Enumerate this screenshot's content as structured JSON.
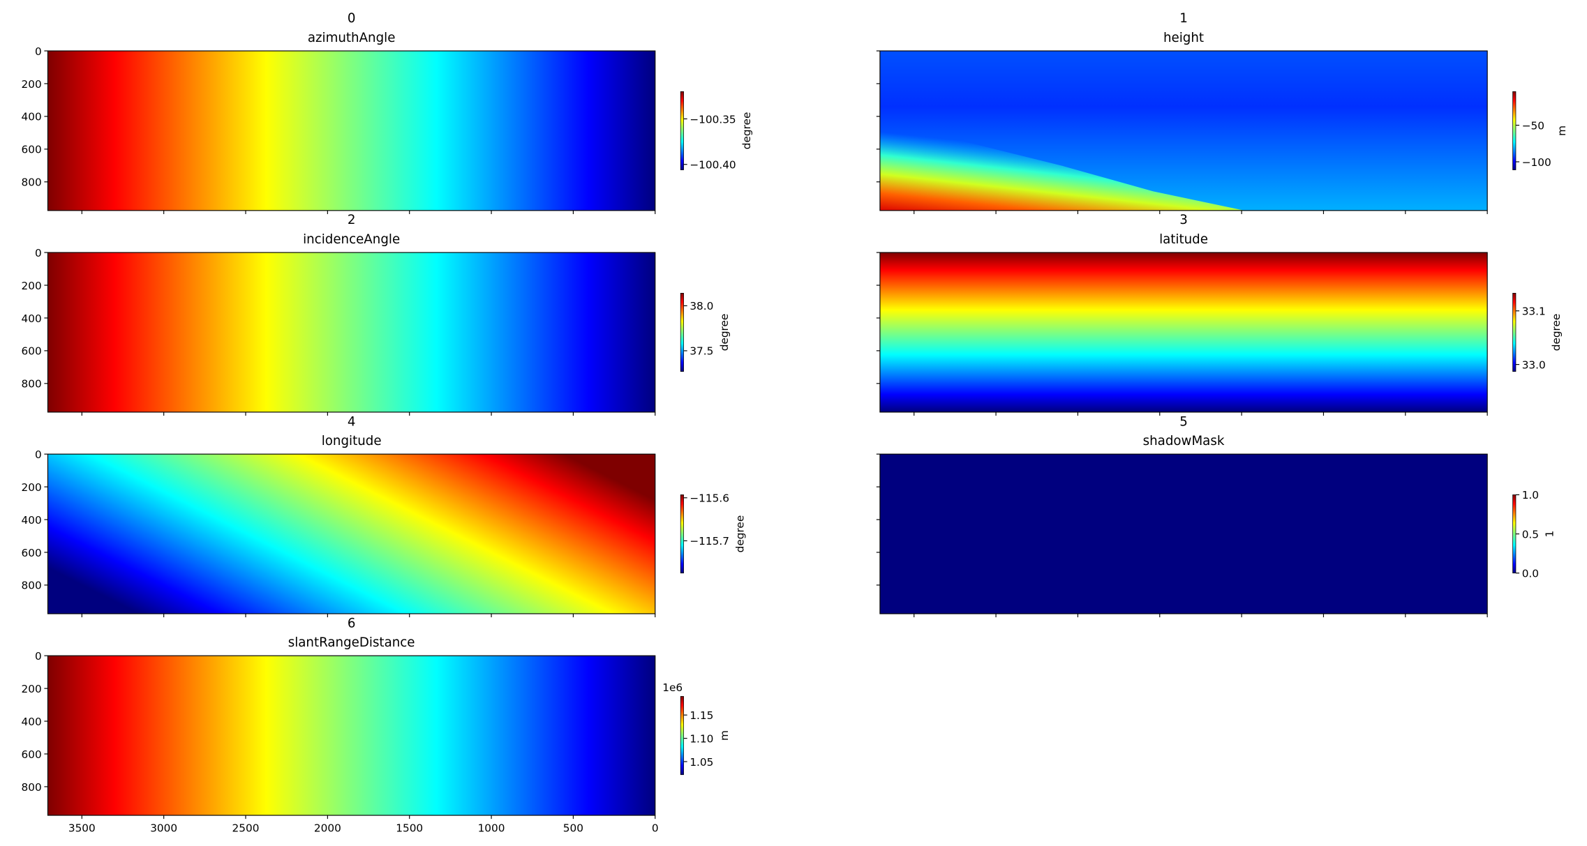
{
  "chart_data": [
    {
      "type": "heatmap",
      "title": "0",
      "subtitle": "azimuthAngle",
      "colormap": "jet",
      "xlim": [
        3708,
        0
      ],
      "xticks": [
        3500,
        3000,
        2500,
        2000,
        1500,
        1000,
        500,
        0
      ],
      "ylim": [
        975,
        0
      ],
      "yticks": [
        0,
        200,
        400,
        600,
        800
      ],
      "clim": [
        -100.406,
        -100.32
      ],
      "cticks": [
        {
          "value": -100.35,
          "label": "−100.35"
        },
        {
          "value": -100.4,
          "label": "−100.40"
        }
      ],
      "colorbar_label": "degree"
    },
    {
      "type": "heatmap",
      "title": "1",
      "subtitle": "height",
      "colormap": "jet",
      "xlim": [
        3708,
        0
      ],
      "xticks": [
        3500,
        3000,
        2500,
        2000,
        1500,
        1000,
        500,
        0
      ],
      "ylim": [
        975,
        0
      ],
      "yticks": [
        0,
        200,
        400,
        600,
        800
      ],
      "clim": [
        -111,
        -4
      ],
      "cticks": [
        {
          "value": -50,
          "label": "−50"
        },
        {
          "value": -100,
          "label": "−100"
        }
      ],
      "colorbar_label": "m"
    },
    {
      "type": "heatmap",
      "title": "2",
      "subtitle": "incidenceAngle",
      "colormap": "jet",
      "xlim": [
        3708,
        0
      ],
      "xticks": [
        3500,
        3000,
        2500,
        2000,
        1500,
        1000,
        500,
        0
      ],
      "ylim": [
        975,
        0
      ],
      "yticks": [
        0,
        200,
        400,
        600,
        800
      ],
      "clim": [
        37.27,
        38.14
      ],
      "cticks": [
        {
          "value": 38.0,
          "label": "38.0"
        },
        {
          "value": 37.5,
          "label": "37.5"
        }
      ],
      "colorbar_label": "degree"
    },
    {
      "type": "heatmap",
      "title": "3",
      "subtitle": "latitude",
      "colormap": "jet",
      "xlim": [
        3708,
        0
      ],
      "xticks": [
        3500,
        3000,
        2500,
        2000,
        1500,
        1000,
        500,
        0
      ],
      "ylim": [
        975,
        0
      ],
      "yticks": [
        0,
        200,
        400,
        600,
        800
      ],
      "clim": [
        32.987,
        33.133
      ],
      "cticks": [
        {
          "value": 33.1,
          "label": "33.1"
        },
        {
          "value": 33.0,
          "label": "33.0"
        }
      ],
      "colorbar_label": "degree"
    },
    {
      "type": "heatmap",
      "title": "4",
      "subtitle": "longitude",
      "colormap": "jet",
      "xlim": [
        3708,
        0
      ],
      "xticks": [
        3500,
        3000,
        2500,
        2000,
        1500,
        1000,
        500,
        0
      ],
      "ylim": [
        975,
        0
      ],
      "yticks": [
        0,
        200,
        400,
        600,
        800
      ],
      "clim": [
        -115.775,
        -115.593
      ],
      "cticks": [
        {
          "value": -115.6,
          "label": "−115.6"
        },
        {
          "value": -115.7,
          "label": "−115.7"
        }
      ],
      "colorbar_label": "degree"
    },
    {
      "type": "heatmap",
      "title": "5",
      "subtitle": "shadowMask",
      "colormap": "jet",
      "xlim": [
        3708,
        0
      ],
      "xticks": [
        3500,
        3000,
        2500,
        2000,
        1500,
        1000,
        500,
        0
      ],
      "ylim": [
        975,
        0
      ],
      "yticks": [
        0,
        200,
        400,
        600,
        800
      ],
      "clim": [
        0,
        1
      ],
      "cticks": [
        {
          "value": 1,
          "label": "1.0"
        },
        {
          "value": 0.5,
          "label": "0.5"
        },
        {
          "value": 0,
          "label": "0.0"
        }
      ],
      "colorbar_label": "1"
    },
    {
      "type": "heatmap",
      "title": "6",
      "subtitle": "slantRangeDistance",
      "colormap": "jet",
      "xlim": [
        3708,
        0
      ],
      "xticks": [
        3500,
        3000,
        2500,
        2000,
        1500,
        1000,
        500,
        0
      ],
      "ylim": [
        975,
        0
      ],
      "yticks": [
        0,
        200,
        400,
        600,
        800
      ],
      "clim": [
        1022000,
        1190000
      ],
      "cticks": [
        {
          "value": 1150000,
          "label": "1.15"
        },
        {
          "value": 1100000,
          "label": "1.10"
        },
        {
          "value": 1050000,
          "label": "1.05"
        }
      ],
      "colorbar_offset": "1e6",
      "colorbar_label": "m"
    }
  ]
}
